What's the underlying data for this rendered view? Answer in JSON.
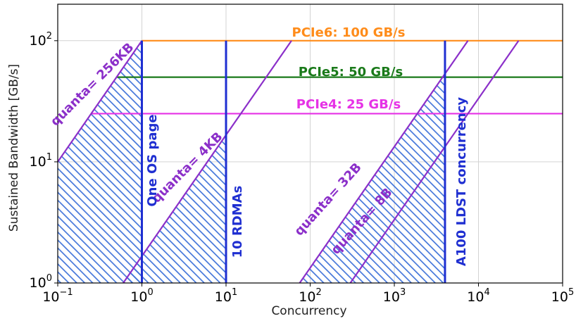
{
  "chart_data": {
    "type": "line",
    "xlabel": "Concurrency",
    "ylabel": "Sustained Bandwidth [GB/s]",
    "x_scale": "log",
    "y_scale": "log",
    "xlim": [
      0.1,
      100000
    ],
    "ylim": [
      1,
      200
    ],
    "grid": true,
    "x_ticks": [
      {
        "base": "10",
        "exp": "−1",
        "value": 0.1
      },
      {
        "base": "10",
        "exp": "0",
        "value": 1
      },
      {
        "base": "10",
        "exp": "1",
        "value": 10
      },
      {
        "base": "10",
        "exp": "2",
        "value": 100
      },
      {
        "base": "10",
        "exp": "3",
        "value": 1000
      },
      {
        "base": "10",
        "exp": "4",
        "value": 10000
      },
      {
        "base": "10",
        "exp": "5",
        "value": 100000
      }
    ],
    "y_ticks": [
      {
        "base": "10",
        "exp": "0",
        "value": 1
      },
      {
        "base": "10",
        "exp": "1",
        "value": 10
      },
      {
        "base": "10",
        "exp": "2",
        "value": 100
      }
    ],
    "bandwidth_limits": [
      {
        "label": "PCIe6: 100 GB/s",
        "value": 100,
        "color": "#ff8c1a",
        "x_start": 1
      },
      {
        "label": "PCIe5: 50 GB/s",
        "value": 50,
        "color": "#1a7a1a",
        "x_start": 0.5
      },
      {
        "label": "PCIe4: 25 GB/s",
        "value": 25,
        "color": "#e632e6",
        "x_start": 0.25
      }
    ],
    "quanta_lines": [
      {
        "label": "quanta= 256KB",
        "x": [
          0.1,
          1
        ],
        "y": [
          10,
          100
        ],
        "color": "#8b2fc9"
      },
      {
        "label": "quanta= 4KB",
        "x": [
          0.6,
          60
        ],
        "y": [
          1,
          100
        ],
        "color": "#8b2fc9"
      },
      {
        "label": "quanta= 32B",
        "x": [
          75,
          7500
        ],
        "y": [
          1,
          100
        ],
        "color": "#8b2fc9"
      },
      {
        "label": "quanta= 8B",
        "x": [
          300,
          30000
        ],
        "y": [
          1,
          100
        ],
        "color": "#8b2fc9"
      }
    ],
    "concurrency_markers": [
      {
        "label": "One OS page",
        "x": 1,
        "y_top": 100,
        "color": "#1f2fd1"
      },
      {
        "label": "10 RDMAs",
        "x": 10,
        "y_top": 100,
        "color": "#1f2fd1"
      },
      {
        "label": "A100 LDST concurrency",
        "x": 4000,
        "y_top": 100,
        "color": "#1f2fd1"
      }
    ],
    "hatched_regions": [
      {
        "polygon": [
          [
            0.1,
            1
          ],
          [
            1,
            1
          ],
          [
            1,
            100
          ],
          [
            0.1,
            10
          ]
        ],
        "color": "#3a6fd8"
      },
      {
        "polygon": [
          [
            0.6,
            1
          ],
          [
            10,
            1
          ],
          [
            10,
            16.7
          ]
        ],
        "color": "#3a6fd8"
      },
      {
        "polygon": [
          [
            75,
            1
          ],
          [
            4000,
            1
          ],
          [
            4000,
            53.3
          ]
        ],
        "color": "#3a6fd8"
      }
    ]
  }
}
